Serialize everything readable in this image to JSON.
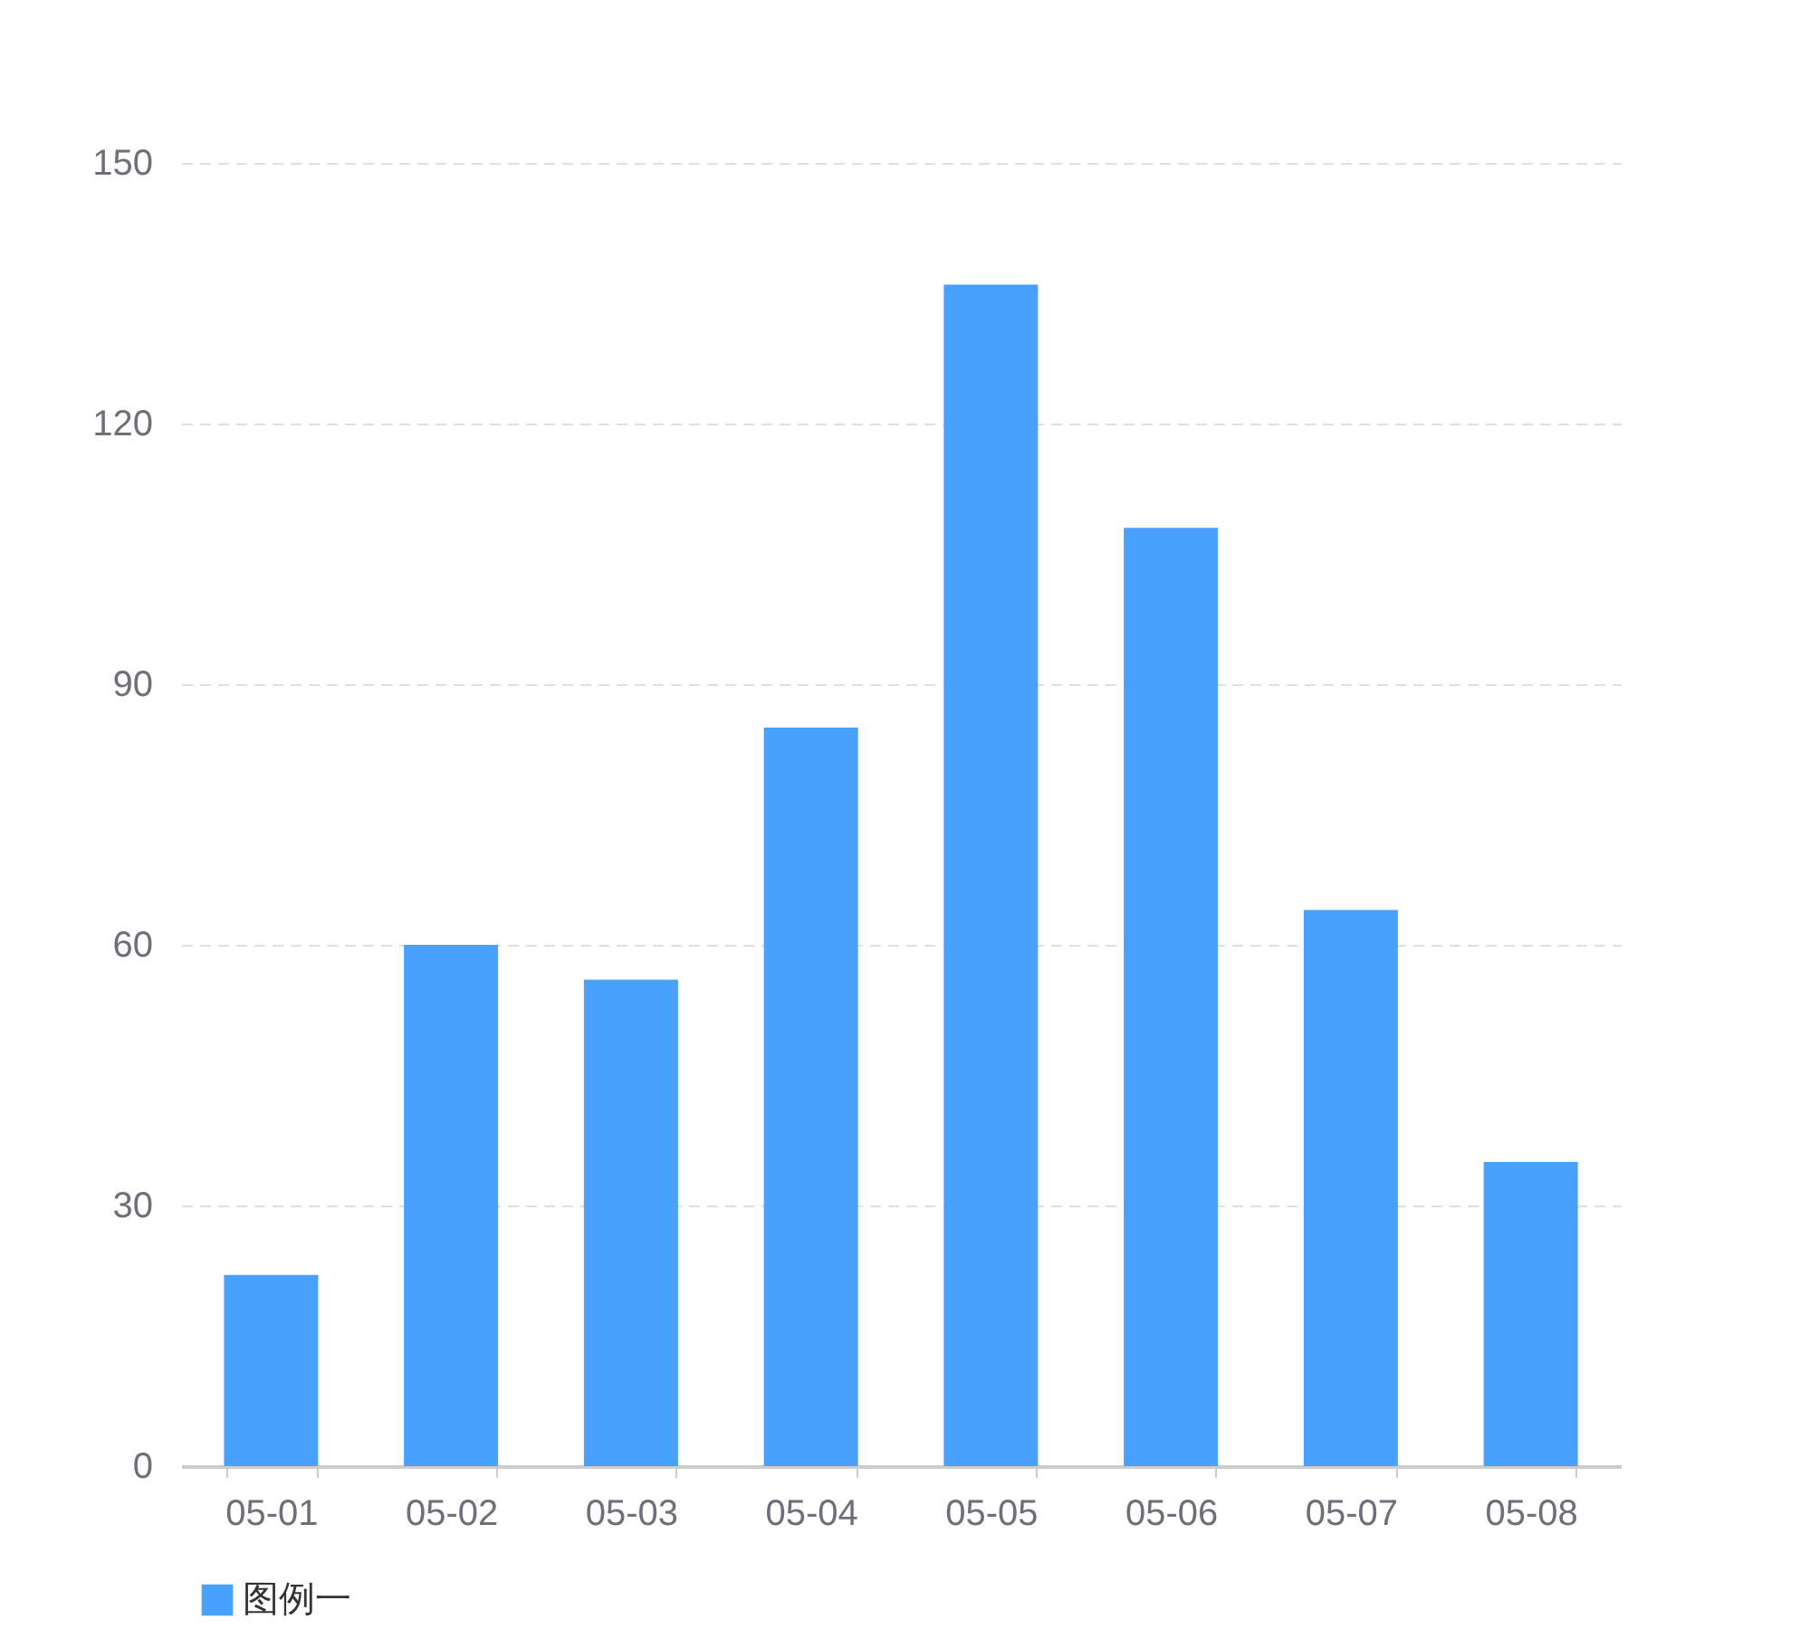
{
  "chart_data": {
    "type": "bar",
    "categories": [
      "05-01",
      "05-02",
      "05-03",
      "05-04",
      "05-05",
      "05-06",
      "05-07",
      "05-08"
    ],
    "series": [
      {
        "name": "图例一",
        "color": "#48a1ff",
        "values": [
          22,
          60,
          56,
          85,
          136,
          108,
          64,
          35
        ]
      }
    ],
    "ylim": [
      0,
      150
    ],
    "yticks": [
      0,
      30,
      60,
      90,
      120,
      150
    ],
    "grid": "y",
    "legend": "bottom"
  }
}
